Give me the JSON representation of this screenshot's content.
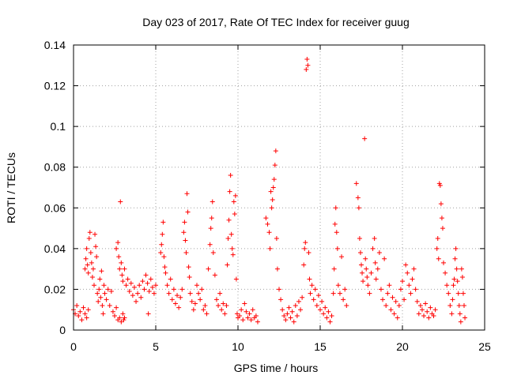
{
  "chart_data": {
    "type": "scatter",
    "title": "Day 023 of 2017, Rate Of TEC Index for receiver guug",
    "xlabel": "GPS time / hours",
    "ylabel": "ROTI / TECUs",
    "xlim": [
      0,
      25
    ],
    "ylim": [
      0,
      0.14
    ],
    "xticks": [
      0,
      5,
      10,
      15,
      20,
      25
    ],
    "yticks": [
      0,
      0.02,
      0.04,
      0.06,
      0.08,
      0.1,
      0.12,
      0.14
    ],
    "xtick_labels": [
      "0",
      "5",
      "10",
      "15",
      "20",
      "25"
    ],
    "ytick_labels": [
      "0",
      "0.02",
      "0.04",
      "0.06",
      "0.08",
      "0.1",
      "0.12",
      "0.14"
    ],
    "grid": true,
    "marker": "plus",
    "color": "#ff0000",
    "series": [
      {
        "points": [
          [
            0.0,
            0.01
          ],
          [
            0.1,
            0.008
          ],
          [
            0.2,
            0.012
          ],
          [
            0.3,
            0.007
          ],
          [
            0.4,
            0.009
          ],
          [
            0.5,
            0.005
          ],
          [
            0.6,
            0.011
          ],
          [
            0.7,
            0.008
          ],
          [
            0.8,
            0.006
          ],
          [
            0.9,
            0.01
          ],
          [
            0.7,
            0.03
          ],
          [
            0.75,
            0.035
          ],
          [
            0.8,
            0.04
          ],
          [
            0.85,
            0.032
          ],
          [
            0.9,
            0.028
          ],
          [
            0.95,
            0.045
          ],
          [
            1.0,
            0.048
          ],
          [
            1.05,
            0.038
          ],
          [
            1.1,
            0.033
          ],
          [
            1.15,
            0.026
          ],
          [
            1.2,
            0.03
          ],
          [
            1.25,
            0.022
          ],
          [
            1.3,
            0.047
          ],
          [
            1.35,
            0.041
          ],
          [
            1.4,
            0.036
          ],
          [
            1.45,
            0.018
          ],
          [
            1.5,
            0.014
          ],
          [
            1.55,
            0.02
          ],
          [
            1.6,
            0.025
          ],
          [
            1.65,
            0.016
          ],
          [
            1.7,
            0.029
          ],
          [
            1.75,
            0.012
          ],
          [
            1.8,
            0.008
          ],
          [
            1.85,
            0.022
          ],
          [
            1.9,
            0.018
          ],
          [
            2.0,
            0.015
          ],
          [
            2.1,
            0.02
          ],
          [
            2.2,
            0.012
          ],
          [
            2.3,
            0.019
          ],
          [
            2.4,
            0.009
          ],
          [
            2.5,
            0.007
          ],
          [
            2.6,
            0.011
          ],
          [
            2.7,
            0.005
          ],
          [
            2.8,
            0.006
          ],
          [
            2.9,
            0.004
          ],
          [
            3.0,
            0.008
          ],
          [
            3.05,
            0.005
          ],
          [
            3.1,
            0.006
          ],
          [
            2.6,
            0.04
          ],
          [
            2.7,
            0.043
          ],
          [
            2.75,
            0.036
          ],
          [
            2.8,
            0.03
          ],
          [
            2.85,
            0.063
          ],
          [
            2.9,
            0.033
          ],
          [
            2.95,
            0.027
          ],
          [
            3.0,
            0.024
          ],
          [
            3.1,
            0.03
          ],
          [
            3.2,
            0.022
          ],
          [
            3.3,
            0.025
          ],
          [
            3.4,
            0.019
          ],
          [
            3.5,
            0.023
          ],
          [
            3.6,
            0.017
          ],
          [
            3.7,
            0.021
          ],
          [
            3.8,
            0.014
          ],
          [
            3.9,
            0.018
          ],
          [
            4.0,
            0.022
          ],
          [
            4.1,
            0.016
          ],
          [
            4.2,
            0.024
          ],
          [
            4.3,
            0.02
          ],
          [
            4.4,
            0.027
          ],
          [
            4.5,
            0.023
          ],
          [
            4.55,
            0.008
          ],
          [
            4.6,
            0.019
          ],
          [
            4.7,
            0.025
          ],
          [
            4.8,
            0.021
          ],
          [
            4.9,
            0.018
          ],
          [
            5.0,
            0.022
          ],
          [
            5.3,
            0.038
          ],
          [
            5.35,
            0.042
          ],
          [
            5.4,
            0.047
          ],
          [
            5.45,
            0.053
          ],
          [
            5.5,
            0.036
          ],
          [
            5.55,
            0.031
          ],
          [
            5.6,
            0.028
          ],
          [
            5.7,
            0.022
          ],
          [
            5.8,
            0.018
          ],
          [
            5.9,
            0.025
          ],
          [
            6.0,
            0.015
          ],
          [
            6.1,
            0.02
          ],
          [
            6.2,
            0.013
          ],
          [
            6.3,
            0.017
          ],
          [
            6.4,
            0.011
          ],
          [
            6.5,
            0.016
          ],
          [
            6.6,
            0.02
          ],
          [
            6.7,
            0.048
          ],
          [
            6.75,
            0.053
          ],
          [
            6.8,
            0.044
          ],
          [
            6.85,
            0.038
          ],
          [
            6.9,
            0.067
          ],
          [
            6.95,
            0.058
          ],
          [
            7.0,
            0.031
          ],
          [
            7.05,
            0.026
          ],
          [
            7.1,
            0.018
          ],
          [
            7.2,
            0.014
          ],
          [
            7.3,
            0.01
          ],
          [
            7.4,
            0.013
          ],
          [
            7.5,
            0.022
          ],
          [
            7.6,
            0.018
          ],
          [
            7.7,
            0.015
          ],
          [
            7.8,
            0.02
          ],
          [
            7.9,
            0.01
          ],
          [
            8.0,
            0.012
          ],
          [
            8.1,
            0.008
          ],
          [
            8.2,
            0.03
          ],
          [
            8.3,
            0.042
          ],
          [
            8.35,
            0.05
          ],
          [
            8.4,
            0.055
          ],
          [
            8.45,
            0.063
          ],
          [
            8.5,
            0.038
          ],
          [
            8.6,
            0.027
          ],
          [
            8.7,
            0.015
          ],
          [
            8.8,
            0.012
          ],
          [
            8.9,
            0.018
          ],
          [
            9.0,
            0.01
          ],
          [
            9.1,
            0.013
          ],
          [
            9.2,
            0.008
          ],
          [
            9.3,
            0.012
          ],
          [
            9.35,
            0.032
          ],
          [
            9.4,
            0.045
          ],
          [
            9.45,
            0.054
          ],
          [
            9.5,
            0.068
          ],
          [
            9.55,
            0.076
          ],
          [
            9.6,
            0.047
          ],
          [
            9.65,
            0.04
          ],
          [
            9.7,
            0.037
          ],
          [
            9.75,
            0.063
          ],
          [
            9.8,
            0.057
          ],
          [
            9.85,
            0.066
          ],
          [
            9.9,
            0.025
          ],
          [
            9.95,
            0.008
          ],
          [
            10.0,
            0.006
          ],
          [
            10.1,
            0.007
          ],
          [
            10.2,
            0.01
          ],
          [
            10.3,
            0.005
          ],
          [
            10.4,
            0.013
          ],
          [
            10.5,
            0.009
          ],
          [
            10.6,
            0.006
          ],
          [
            10.7,
            0.008
          ],
          [
            10.8,
            0.005
          ],
          [
            10.9,
            0.01
          ],
          [
            11.0,
            0.006
          ],
          [
            11.1,
            0.007
          ],
          [
            11.2,
            0.004
          ],
          [
            11.7,
            0.055
          ],
          [
            11.8,
            0.052
          ],
          [
            11.9,
            0.048
          ],
          [
            11.95,
            0.04
          ],
          [
            12.0,
            0.068
          ],
          [
            12.05,
            0.06
          ],
          [
            12.1,
            0.064
          ],
          [
            12.15,
            0.07
          ],
          [
            12.2,
            0.074
          ],
          [
            12.25,
            0.081
          ],
          [
            12.3,
            0.088
          ],
          [
            12.35,
            0.045
          ],
          [
            12.4,
            0.03
          ],
          [
            12.5,
            0.02
          ],
          [
            12.6,
            0.015
          ],
          [
            12.7,
            0.01
          ],
          [
            12.8,
            0.007
          ],
          [
            12.9,
            0.005
          ],
          [
            13.0,
            0.008
          ],
          [
            13.1,
            0.011
          ],
          [
            13.2,
            0.006
          ],
          [
            13.3,
            0.009
          ],
          [
            13.4,
            0.004
          ],
          [
            13.5,
            0.012
          ],
          [
            13.6,
            0.007
          ],
          [
            13.7,
            0.014
          ],
          [
            13.8,
            0.01
          ],
          [
            13.9,
            0.016
          ],
          [
            14.0,
            0.032
          ],
          [
            14.05,
            0.04
          ],
          [
            14.1,
            0.043
          ],
          [
            14.15,
            0.128
          ],
          [
            14.2,
            0.133
          ],
          [
            14.25,
            0.13
          ],
          [
            14.3,
            0.038
          ],
          [
            14.35,
            0.025
          ],
          [
            14.4,
            0.018
          ],
          [
            14.5,
            0.022
          ],
          [
            14.6,
            0.015
          ],
          [
            14.7,
            0.02
          ],
          [
            14.8,
            0.012
          ],
          [
            14.9,
            0.017
          ],
          [
            15.0,
            0.01
          ],
          [
            15.1,
            0.014
          ],
          [
            15.2,
            0.008
          ],
          [
            15.3,
            0.011
          ],
          [
            15.4,
            0.006
          ],
          [
            15.5,
            0.009
          ],
          [
            15.6,
            0.004
          ],
          [
            15.7,
            0.007
          ],
          [
            15.8,
            0.018
          ],
          [
            15.85,
            0.03
          ],
          [
            15.9,
            0.052
          ],
          [
            15.95,
            0.06
          ],
          [
            16.0,
            0.048
          ],
          [
            16.05,
            0.04
          ],
          [
            16.1,
            0.022
          ],
          [
            16.2,
            0.018
          ],
          [
            16.3,
            0.036
          ],
          [
            16.4,
            0.015
          ],
          [
            16.5,
            0.02
          ],
          [
            16.6,
            0.012
          ],
          [
            17.2,
            0.072
          ],
          [
            17.3,
            0.065
          ],
          [
            17.35,
            0.06
          ],
          [
            17.4,
            0.045
          ],
          [
            17.45,
            0.038
          ],
          [
            17.5,
            0.032
          ],
          [
            17.55,
            0.028
          ],
          [
            17.6,
            0.024
          ],
          [
            17.7,
            0.094
          ],
          [
            17.75,
            0.035
          ],
          [
            17.8,
            0.03
          ],
          [
            17.85,
            0.026
          ],
          [
            17.9,
            0.022
          ],
          [
            18.0,
            0.018
          ],
          [
            18.1,
            0.028
          ],
          [
            18.2,
            0.04
          ],
          [
            18.3,
            0.045
          ],
          [
            18.35,
            0.033
          ],
          [
            18.4,
            0.025
          ],
          [
            18.5,
            0.03
          ],
          [
            18.6,
            0.038
          ],
          [
            18.7,
            0.02
          ],
          [
            18.8,
            0.015
          ],
          [
            18.9,
            0.035
          ],
          [
            19.0,
            0.012
          ],
          [
            19.1,
            0.018
          ],
          [
            19.2,
            0.022
          ],
          [
            19.3,
            0.01
          ],
          [
            19.4,
            0.016
          ],
          [
            19.5,
            0.008
          ],
          [
            19.6,
            0.014
          ],
          [
            19.7,
            0.006
          ],
          [
            19.8,
            0.012
          ],
          [
            19.9,
            0.02
          ],
          [
            20.0,
            0.024
          ],
          [
            20.1,
            0.015
          ],
          [
            20.2,
            0.032
          ],
          [
            20.3,
            0.028
          ],
          [
            20.4,
            0.022
          ],
          [
            20.5,
            0.018
          ],
          [
            20.6,
            0.025
          ],
          [
            20.7,
            0.03
          ],
          [
            20.8,
            0.02
          ],
          [
            20.9,
            0.014
          ],
          [
            21.0,
            0.008
          ],
          [
            21.1,
            0.012
          ],
          [
            21.2,
            0.01
          ],
          [
            21.3,
            0.007
          ],
          [
            21.4,
            0.013
          ],
          [
            21.5,
            0.009
          ],
          [
            21.6,
            0.006
          ],
          [
            21.7,
            0.011
          ],
          [
            21.8,
            0.008
          ],
          [
            21.9,
            0.007
          ],
          [
            22.0,
            0.01
          ],
          [
            22.1,
            0.04
          ],
          [
            22.15,
            0.045
          ],
          [
            22.2,
            0.035
          ],
          [
            22.25,
            0.072
          ],
          [
            22.3,
            0.071
          ],
          [
            22.35,
            0.062
          ],
          [
            22.4,
            0.055
          ],
          [
            22.45,
            0.05
          ],
          [
            22.5,
            0.033
          ],
          [
            22.6,
            0.028
          ],
          [
            22.7,
            0.022
          ],
          [
            22.8,
            0.018
          ],
          [
            22.9,
            0.012
          ],
          [
            23.0,
            0.008
          ],
          [
            23.05,
            0.015
          ],
          [
            23.1,
            0.022
          ],
          [
            23.15,
            0.025
          ],
          [
            23.2,
            0.035
          ],
          [
            23.25,
            0.04
          ],
          [
            23.3,
            0.03
          ],
          [
            23.35,
            0.024
          ],
          [
            23.4,
            0.018
          ],
          [
            23.45,
            0.012
          ],
          [
            23.5,
            0.008
          ],
          [
            23.55,
            0.004
          ],
          [
            23.6,
            0.03
          ],
          [
            23.65,
            0.026
          ],
          [
            23.7,
            0.018
          ],
          [
            23.75,
            0.012
          ],
          [
            23.8,
            0.006
          ]
        ]
      }
    ]
  }
}
